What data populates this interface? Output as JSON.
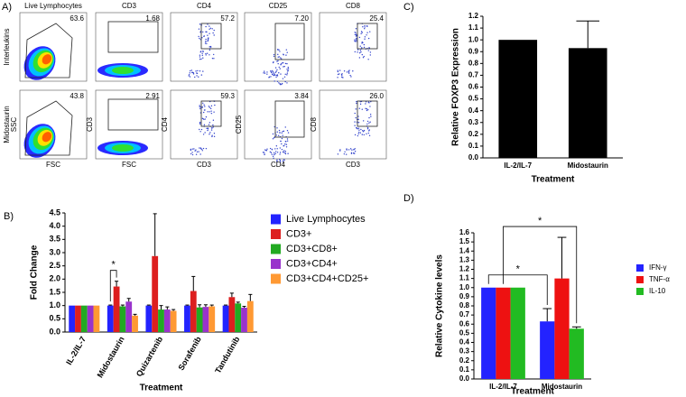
{
  "panel_labels": [
    "A)",
    "B)",
    "C)",
    "D)"
  ],
  "flow_cytometry": {
    "columns": [
      "Live Lymphocytes",
      "CD3",
      "CD4",
      "CD25",
      "CD8"
    ],
    "rows": [
      {
        "label": "Interleukins",
        "gates": [
          "63.6",
          "1.68",
          "57.2",
          "7.20",
          "25.4"
        ]
      },
      {
        "label": "Midostaurin",
        "gates": [
          "43.8",
          "2.91",
          "59.3",
          "3.84",
          "26.0"
        ]
      }
    ],
    "y_axis_labels": [
      "SSC",
      "CD3",
      "CD4",
      "CD25",
      "CD8"
    ],
    "x_axis_labels": [
      "FSC",
      "FSC",
      "CD3",
      "CD4",
      "CD3"
    ]
  },
  "chart_data": [
    {
      "type": "bar",
      "y_label": "Fold Change",
      "x_label": "Treatment",
      "categories": [
        "IL-2/IL-7",
        "Midostaurin",
        "Quizartenib",
        "Sorafenib",
        "Tandutinib"
      ],
      "series": [
        {
          "name": "Live Lymphocytes",
          "color": "#2323ff",
          "values": [
            1,
            1,
            1,
            1,
            1
          ],
          "errors": [
            null,
            0.02,
            0.02,
            0.02,
            0.02
          ]
        },
        {
          "name": "CD3+",
          "color": "#dd1f1f",
          "values": [
            1,
            1.72,
            2.87,
            1.55,
            1.32
          ],
          "errors": [
            null,
            0.2,
            1.6,
            0.55,
            0.15
          ]
        },
        {
          "name": "CD3+CD8+",
          "color": "#22aa22",
          "values": [
            1,
            0.97,
            0.85,
            0.93,
            1.08
          ],
          "errors": [
            null,
            0.05,
            0.15,
            0.1,
            0.05
          ]
        },
        {
          "name": "CD3+CD4+",
          "color": "#9933cc",
          "values": [
            1,
            1.15,
            0.85,
            0.95,
            0.92
          ],
          "errors": [
            null,
            0.12,
            0.1,
            0.08,
            0.05
          ]
        },
        {
          "name": "CD3+CD4+CD25+",
          "color": "#ff9933",
          "values": [
            1,
            0.62,
            0.8,
            0.97,
            1.17
          ],
          "errors": [
            null,
            0.05,
            0.05,
            0.05,
            0.25
          ]
        }
      ],
      "ylim": [
        0,
        4.5
      ],
      "yticks": [
        {
          "value": 0,
          "label": "0.0"
        },
        {
          "value": 0.5,
          "label": "0.5"
        },
        {
          "value": 1,
          "label": "1.0"
        },
        {
          "value": 1.5,
          "label": "1.5"
        },
        {
          "value": 2,
          "label": "2.0"
        },
        {
          "value": 2.5,
          "label": "2.5"
        },
        {
          "value": 3,
          "label": "3.0"
        },
        {
          "value": 3.5,
          "label": "3.5"
        },
        {
          "value": 4,
          "label": "4.0"
        },
        {
          "value": 4.5,
          "label": "4.5"
        }
      ],
      "annotations": [
        "*"
      ]
    },
    {
      "type": "bar",
      "y_label": "Relative FOXP3 Expression",
      "x_label": "Treatment",
      "categories": [
        "IL-2/IL-7",
        "Midostaurin"
      ],
      "values": [
        1,
        0.93
      ],
      "errors": [
        null,
        0.23
      ],
      "color": "#000000",
      "ylim": [
        0,
        1.2
      ],
      "yticks": [
        {
          "value": 0,
          "label": "0.0"
        },
        {
          "value": 0.1,
          "label": "0.1"
        },
        {
          "value": 0.2,
          "label": "0.2"
        },
        {
          "value": 0.3,
          "label": "0.3"
        },
        {
          "value": 0.4,
          "label": "0.4"
        },
        {
          "value": 0.5,
          "label": "0.5"
        },
        {
          "value": 0.6,
          "label": "0.6"
        },
        {
          "value": 0.7,
          "label": "0.7"
        },
        {
          "value": 0.8,
          "label": "0.8"
        },
        {
          "value": 0.9,
          "label": "0.9"
        },
        {
          "value": 1,
          "label": "1.0"
        },
        {
          "value": 1.1,
          "label": "1.1"
        },
        {
          "value": 1.2,
          "label": "1.2"
        }
      ]
    },
    {
      "type": "bar",
      "y_label": "Relative Cytokine levels",
      "x_label": "Treatment",
      "categories": [
        "IL-2/IL-7",
        "Midostaurin"
      ],
      "series": [
        {
          "name": "IFN-γ",
          "color": "#2323ff",
          "values": [
            1,
            0.63
          ],
          "errors": [
            null,
            0.14
          ]
        },
        {
          "name": "TNF-α",
          "color": "#ee1111",
          "values": [
            1,
            1.1
          ],
          "errors": [
            null,
            0.45
          ]
        },
        {
          "name": "IL-10",
          "color": "#22bb22",
          "values": [
            1,
            0.55
          ],
          "errors": [
            null,
            0.02
          ]
        }
      ],
      "ylim": [
        0,
        1.6
      ],
      "yticks": [
        {
          "value": 0,
          "label": "0.0"
        },
        {
          "value": 0.1,
          "label": "0.1"
        },
        {
          "value": 0.2,
          "label": "0.2"
        },
        {
          "value": 0.3,
          "label": "0.3"
        },
        {
          "value": 0.4,
          "label": "0.4"
        },
        {
          "value": 0.5,
          "label": "0.5"
        },
        {
          "value": 0.6,
          "label": "0.6"
        },
        {
          "value": 0.7,
          "label": "0.7"
        },
        {
          "value": 0.8,
          "label": "0.8"
        },
        {
          "value": 0.9,
          "label": "0.9"
        },
        {
          "value": 1,
          "label": "1.0"
        },
        {
          "value": 1.1,
          "label": "1.1"
        },
        {
          "value": 1.2,
          "label": "1.2"
        },
        {
          "value": 1.3,
          "label": "1.3"
        },
        {
          "value": 1.4,
          "label": "1.4"
        },
        {
          "value": 1.5,
          "label": "1.5"
        },
        {
          "value": 1.6,
          "label": "1.6"
        }
      ],
      "annotations": [
        "*",
        "*"
      ]
    }
  ]
}
